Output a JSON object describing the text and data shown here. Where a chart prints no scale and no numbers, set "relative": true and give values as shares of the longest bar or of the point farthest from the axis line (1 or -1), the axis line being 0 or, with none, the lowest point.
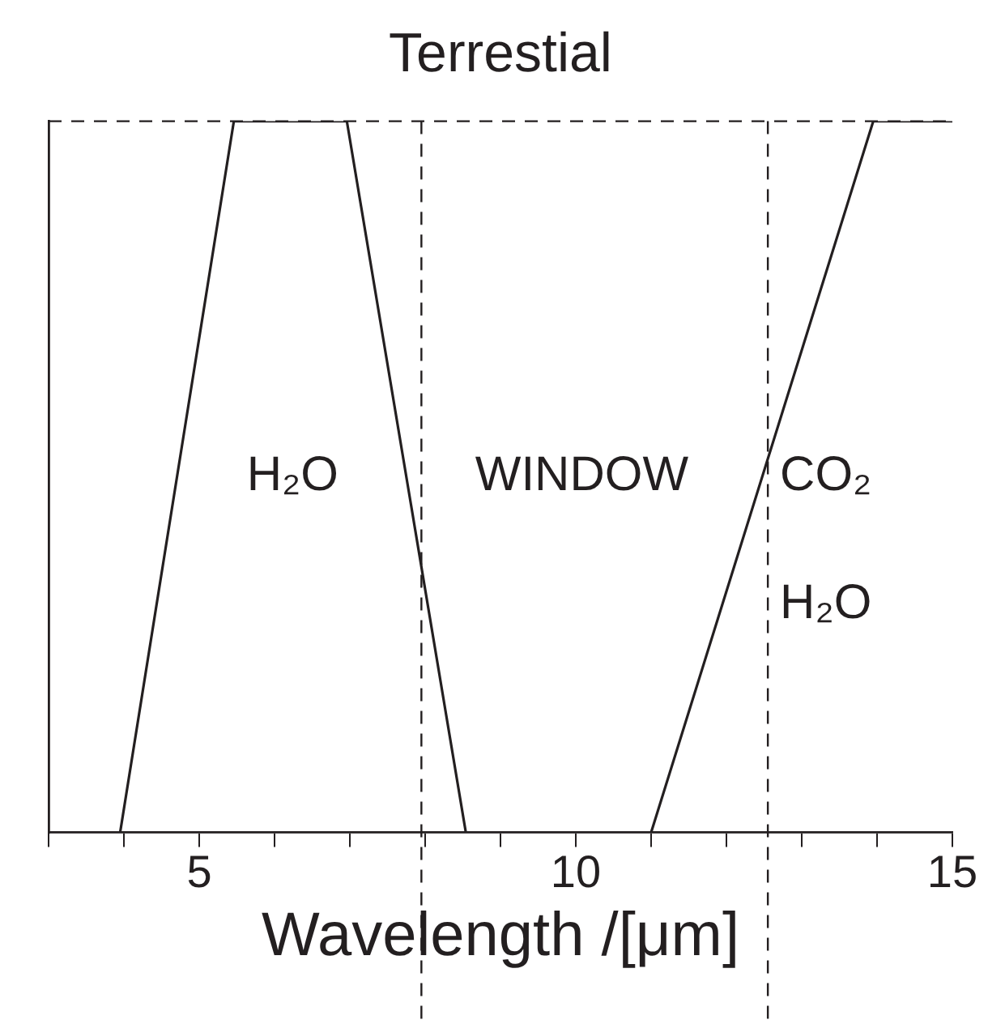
{
  "chart_data": {
    "type": "line",
    "title": "Terrestial",
    "xlabel": "Wavelength /[μm]",
    "relative": true,
    "x": [
      3,
      3.95,
      5.46,
      6.96,
      8.54,
      11.0,
      13.95,
      15
    ],
    "series": [
      {
        "color": "#231f20",
        "values": [
          0,
          0,
          1,
          1,
          0,
          0,
          1,
          1
        ]
      }
    ],
    "xlim": [
      3,
      15
    ],
    "xticks": [
      {
        "value": 3,
        "label": null
      },
      {
        "value": 4,
        "label": null
      },
      5,
      {
        "value": 6,
        "label": null
      },
      {
        "value": 7,
        "label": null
      },
      {
        "value": 8,
        "label": null
      },
      {
        "value": 9,
        "label": null
      },
      10,
      {
        "value": 11,
        "label": null
      },
      {
        "value": 12,
        "label": null
      },
      {
        "value": 13,
        "label": null
      },
      {
        "value": 14,
        "label": null
      },
      15
    ],
    "ref_lines": [
      {
        "axis": "y",
        "value": 1,
        "line_style": "dashed",
        "color": "#231f20"
      },
      {
        "axis": "x",
        "value": 7.95,
        "line_style": "dashed",
        "color": "#231f20"
      },
      {
        "axis": "x",
        "value": 12.55,
        "line_style": "dashed",
        "color": "#231f20"
      }
    ],
    "annotations": [
      "H₂O",
      "WINDOW",
      "CO₂",
      "H₂O"
    ],
    "grid": false,
    "legend": false,
    "marker": "none",
    "line_style": "solid"
  }
}
